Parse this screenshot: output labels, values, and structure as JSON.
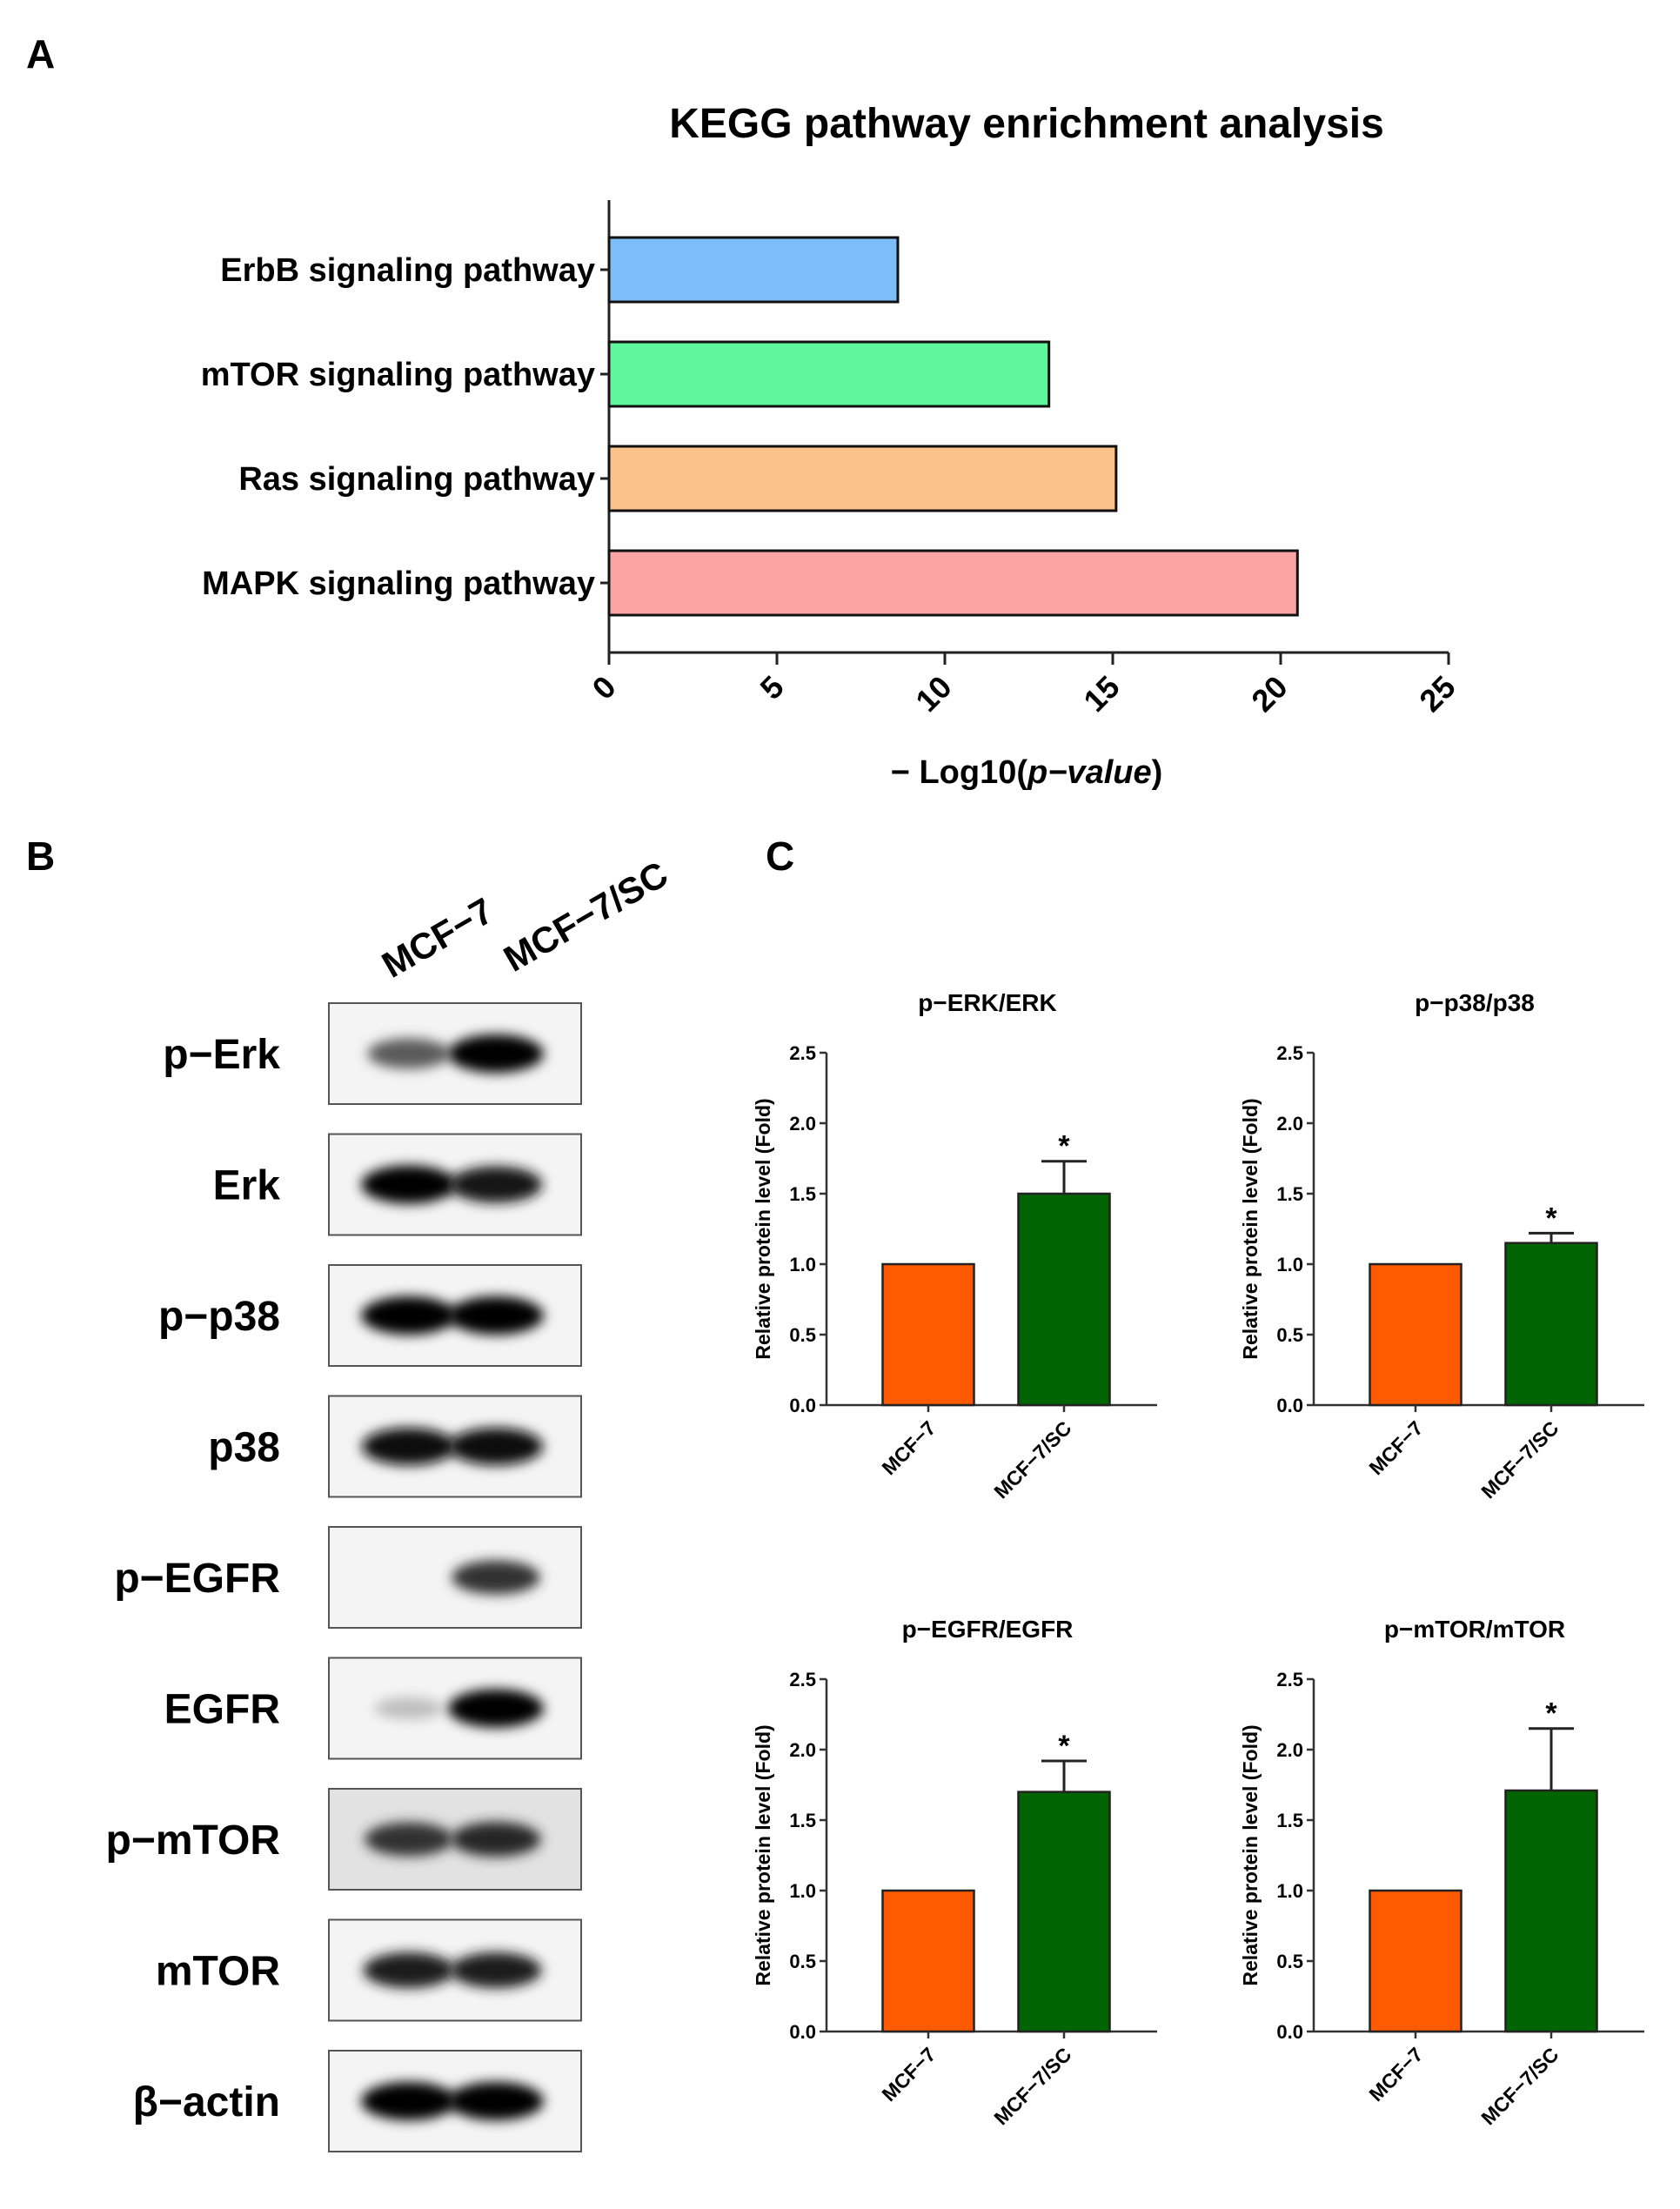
{
  "panel_labels": [
    "A",
    "B",
    "C"
  ],
  "chart_data": [
    {
      "id": "kegg",
      "type": "bar",
      "orientation": "horizontal",
      "title": "KEGG pathway enrichment analysis",
      "xlabel": "− Log10(p−value)",
      "xlabel_parts": [
        "− Log10(",
        "p−value",
        ")"
      ],
      "ylabel": "",
      "xlim": [
        0,
        25
      ],
      "xticks": [
        0,
        5,
        10,
        15,
        20,
        25
      ],
      "categories": [
        "ErbB signaling pathway",
        "mTOR signaling pathway",
        "Ras signaling pathway",
        "MAPK signaling pathway"
      ],
      "values": [
        8.6,
        13.1,
        15.1,
        20.5
      ],
      "colors": [
        "#7dbdf8",
        "#5ef79c",
        "#fbc389",
        "#fca3a3"
      ],
      "grid": false
    },
    {
      "id": "perk",
      "type": "bar",
      "title": "p−ERK/ERK",
      "ylabel": "Relative protein level (Fold)",
      "xlabel": "",
      "ylim": [
        0,
        2.5
      ],
      "yticks": [
        "0.0",
        "0.5",
        "1.0",
        "1.5",
        "2.0",
        "2.5"
      ],
      "categories": [
        "MCF−7",
        "MCF−7/SC"
      ],
      "values": [
        1.0,
        1.5
      ],
      "errors": [
        0,
        0.23
      ],
      "significance": [
        "",
        "*"
      ],
      "colors": [
        "#ff5a00",
        "#006400"
      ]
    },
    {
      "id": "pp38",
      "type": "bar",
      "title": "p−p38/p38",
      "ylabel": "Relative protein level (Fold)",
      "xlabel": "",
      "ylim": [
        0,
        2.5
      ],
      "yticks": [
        "0.0",
        "0.5",
        "1.0",
        "1.5",
        "2.0",
        "2.5"
      ],
      "categories": [
        "MCF−7",
        "MCF−7/SC"
      ],
      "values": [
        1.0,
        1.15
      ],
      "errors": [
        0,
        0.07
      ],
      "significance": [
        "",
        "*"
      ],
      "colors": [
        "#ff5a00",
        "#006400"
      ]
    },
    {
      "id": "pegfr",
      "type": "bar",
      "title": "p−EGFR/EGFR",
      "ylabel": "Relative protein level (Fold)",
      "xlabel": "",
      "ylim": [
        0,
        2.5
      ],
      "yticks": [
        "0.0",
        "0.5",
        "1.0",
        "1.5",
        "2.0",
        "2.5"
      ],
      "categories": [
        "MCF−7",
        "MCF−7/SC"
      ],
      "values": [
        1.0,
        1.7
      ],
      "errors": [
        0,
        0.22
      ],
      "significance": [
        "",
        "*"
      ],
      "colors": [
        "#ff5a00",
        "#006400"
      ]
    },
    {
      "id": "pmtor",
      "type": "bar",
      "title": "p−mTOR/mTOR",
      "ylabel": "Relative protein level (Fold)",
      "xlabel": "",
      "ylim": [
        0,
        2.5
      ],
      "yticks": [
        "0.0",
        "0.5",
        "1.0",
        "1.5",
        "2.0",
        "2.5"
      ],
      "categories": [
        "MCF−7",
        "MCF−7/SC"
      ],
      "values": [
        1.0,
        1.71
      ],
      "errors": [
        0,
        0.44
      ],
      "significance": [
        "",
        "*"
      ],
      "colors": [
        "#ff5a00",
        "#006400"
      ]
    }
  ],
  "western_blot": {
    "lanes": [
      "MCF−7",
      "MCF−7/SC"
    ],
    "rows": [
      {
        "label": "p−Erk",
        "bands": [
          0.55,
          1.0
        ]
      },
      {
        "label": "Erk",
        "bands": [
          1.0,
          0.9
        ]
      },
      {
        "label": "p−p38",
        "bands": [
          1.0,
          1.0
        ]
      },
      {
        "label": "p38",
        "bands": [
          0.95,
          0.95
        ]
      },
      {
        "label": "p−EGFR",
        "bands": [
          0.0,
          0.75
        ]
      },
      {
        "label": "EGFR",
        "bands": [
          0.05,
          1.0
        ]
      },
      {
        "label": "p−mTOR",
        "bands": [
          0.75,
          0.8
        ]
      },
      {
        "label": "mTOR",
        "bands": [
          0.85,
          0.85
        ]
      },
      {
        "label": "β−actin",
        "bands": [
          1.0,
          1.0
        ]
      }
    ]
  }
}
